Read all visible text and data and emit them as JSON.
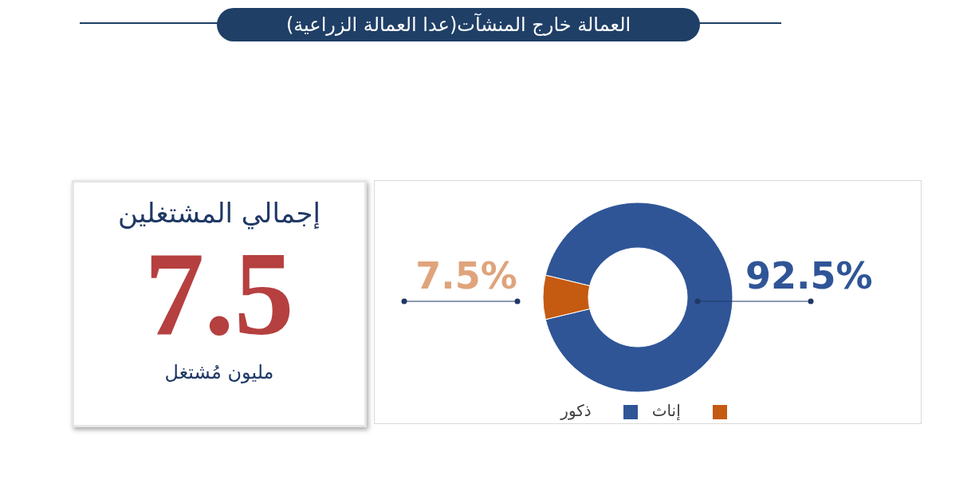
{
  "chart_data": [
    {
      "type": "donut",
      "title": "العمالة خارج المنشآت(عدا العمالة الزراعية)",
      "categories": [
        "ذكور",
        "إناث"
      ],
      "values": [
        92.5,
        7.5
      ],
      "colors": [
        "#2f5597",
        "#c55a11"
      ],
      "value_labels": [
        "92.5%",
        "7.5%"
      ],
      "legend": "bottom"
    },
    {
      "type": "other",
      "title": "إجمالي المشتغلين",
      "annotations": [
        "7.5",
        "مليون مُشتغل"
      ]
    }
  ]
}
